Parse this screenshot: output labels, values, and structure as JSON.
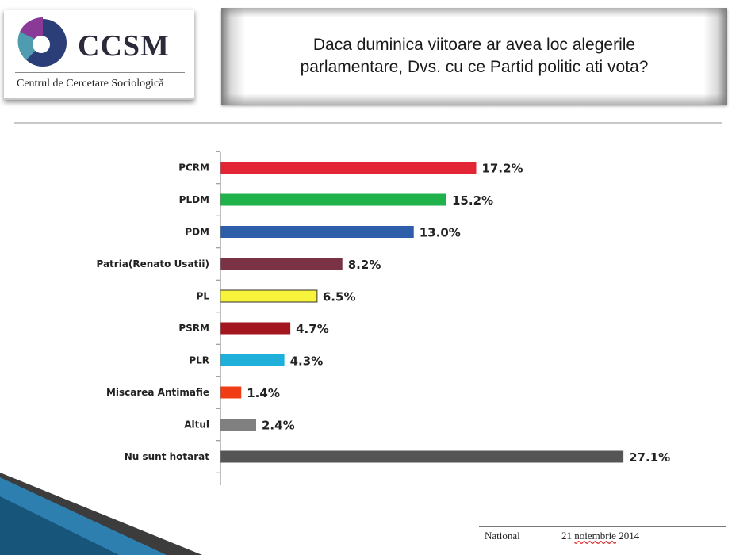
{
  "logo": {
    "text": "CCSM",
    "subtitle": "Centrul de Cercetare Sociologică"
  },
  "title": {
    "line1": "Daca duminica viitoare ar avea loc alegerile",
    "line2": "parlamentare, Dvs. cu ce Partid politic ati vota?"
  },
  "footer": {
    "scope": "National",
    "date_day": "21",
    "date_month": "noiembrie",
    "date_year": "2014"
  },
  "colors": {
    "axis": "#7f7f7f",
    "deco": "#1f6f9f"
  },
  "chart_data": {
    "type": "bar",
    "orientation": "horizontal",
    "title": "",
    "xlabel": "",
    "ylabel": "",
    "xlim": [
      0,
      30
    ],
    "grid": false,
    "legend": "none",
    "categories": [
      "PCRM",
      "PLDM",
      "PDM",
      "Patria(Renato Usatii)",
      "PL",
      "PSRM",
      "PLR",
      "Miscarea Antimafie",
      "Altul",
      "Nu sunt hotarat"
    ],
    "values": [
      17.2,
      15.2,
      13.0,
      8.2,
      6.5,
      4.7,
      4.3,
      1.4,
      2.4,
      27.1
    ],
    "value_labels": [
      "17.2%",
      "15.2%",
      "13.0%",
      "8.2%",
      "6.5%",
      "4.7%",
      "4.3%",
      "1.4%",
      "2.4%",
      "27.1%"
    ],
    "bar_colors": [
      "#e32636",
      "#1fb14a",
      "#2e5ea8",
      "#7a3344",
      "#f7f23a",
      "#a4161f",
      "#1fb0d9",
      "#f03c14",
      "#808080",
      "#555555"
    ]
  }
}
